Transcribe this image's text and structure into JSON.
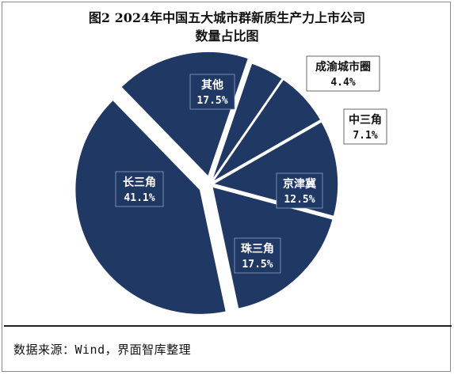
{
  "chart_data": {
    "type": "pie",
    "title_line1": "图2 2024年中国五大城市群新质生产力上市公司",
    "title_line2": "数量占比图",
    "slices": [
      {
        "label": "长三角",
        "value": 41.1,
        "value_label": "41.1%"
      },
      {
        "label": "其他",
        "value": 17.5,
        "value_label": "17.5%"
      },
      {
        "label": "成渝城市圈",
        "value": 4.4,
        "value_label": "4.4%"
      },
      {
        "label": "中三角",
        "value": 7.1,
        "value_label": "7.1%"
      },
      {
        "label": "京津冀",
        "value": 12.5,
        "value_label": "12.5%"
      },
      {
        "label": "珠三角",
        "value": 17.5,
        "value_label": "17.5%"
      }
    ],
    "colors": {
      "slice": "#203864",
      "edge": "#ffffff",
      "label_bg": "#ffffff"
    }
  },
  "source": "数据来源：Wind，界面智库整理"
}
